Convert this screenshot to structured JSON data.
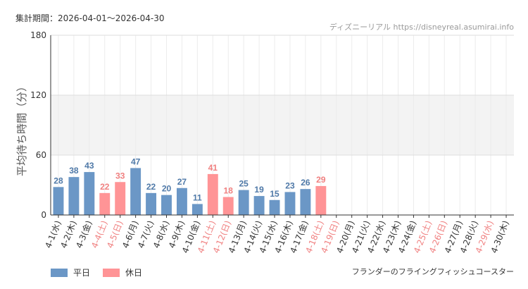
{
  "header": {
    "period": "集計期間：2026-04-01～2026-04-30",
    "source": "ディズニーリアル https://disneyreal.asumirai.info"
  },
  "legend": {
    "weekday_label": "平日",
    "holiday_label": "休日"
  },
  "colors": {
    "weekday": "#6b97c6",
    "holiday": "#ff9496",
    "weekday_text": "#4f79a8",
    "holiday_text": "#f08080"
  },
  "chart_data": {
    "type": "bar",
    "title": "",
    "ylabel": "平均待ち時間（分）",
    "xlabel": "",
    "series_name": "フランダーのフライングフィッシュコースター",
    "ylim": [
      0,
      180
    ],
    "yticks": [
      0,
      60,
      120,
      180
    ],
    "grid": true,
    "legend_position": "bottom-left",
    "categories": [
      "4-1(水)",
      "4-2(木)",
      "4-3(金)",
      "4-4(土)",
      "4-5(日)",
      "4-6(月)",
      "4-7(火)",
      "4-8(水)",
      "4-9(木)",
      "4-10(金)",
      "4-11(土)",
      "4-12(日)",
      "4-13(月)",
      "4-14(火)",
      "4-15(水)",
      "4-16(木)",
      "4-17(金)",
      "4-18(土)",
      "4-19(日)",
      "4-20(月)",
      "4-21(火)",
      "4-22(水)",
      "4-23(木)",
      "4-24(金)",
      "4-25(土)",
      "4-26(日)",
      "4-27(月)",
      "4-28(火)",
      "4-29(水)",
      "4-30(木)"
    ],
    "values": [
      28,
      38,
      43,
      22,
      33,
      47,
      22,
      20,
      27,
      11,
      41,
      18,
      25,
      19,
      15,
      23,
      26,
      29,
      null,
      null,
      null,
      null,
      null,
      null,
      null,
      null,
      null,
      null,
      null,
      null
    ],
    "holiday": [
      false,
      false,
      false,
      true,
      true,
      false,
      false,
      false,
      false,
      false,
      true,
      true,
      false,
      false,
      false,
      false,
      false,
      true,
      true,
      false,
      false,
      false,
      false,
      false,
      true,
      true,
      false,
      false,
      true,
      false
    ]
  }
}
